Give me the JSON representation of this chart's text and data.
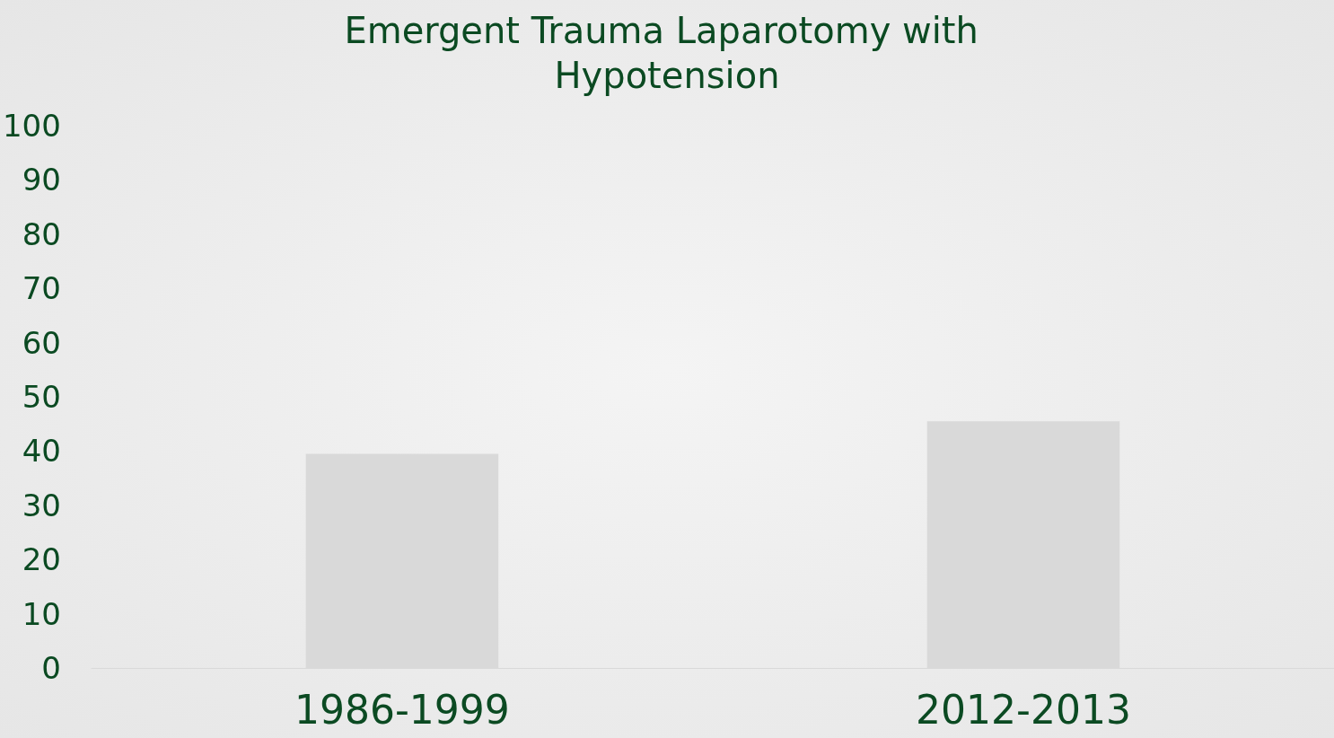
{
  "chart_data": {
    "type": "bar",
    "title": "Emergent Trauma Laparotomy with Hypotension",
    "categories": [
      "1986-1999",
      "2012-2013"
    ],
    "values": [
      39.5,
      45.5
    ],
    "color": "#d9d9d9",
    "ylim": [
      0,
      100
    ],
    "yticks": [
      0,
      10,
      20,
      30,
      40,
      50,
      60,
      70,
      80,
      90,
      100
    ],
    "grid": false
  }
}
